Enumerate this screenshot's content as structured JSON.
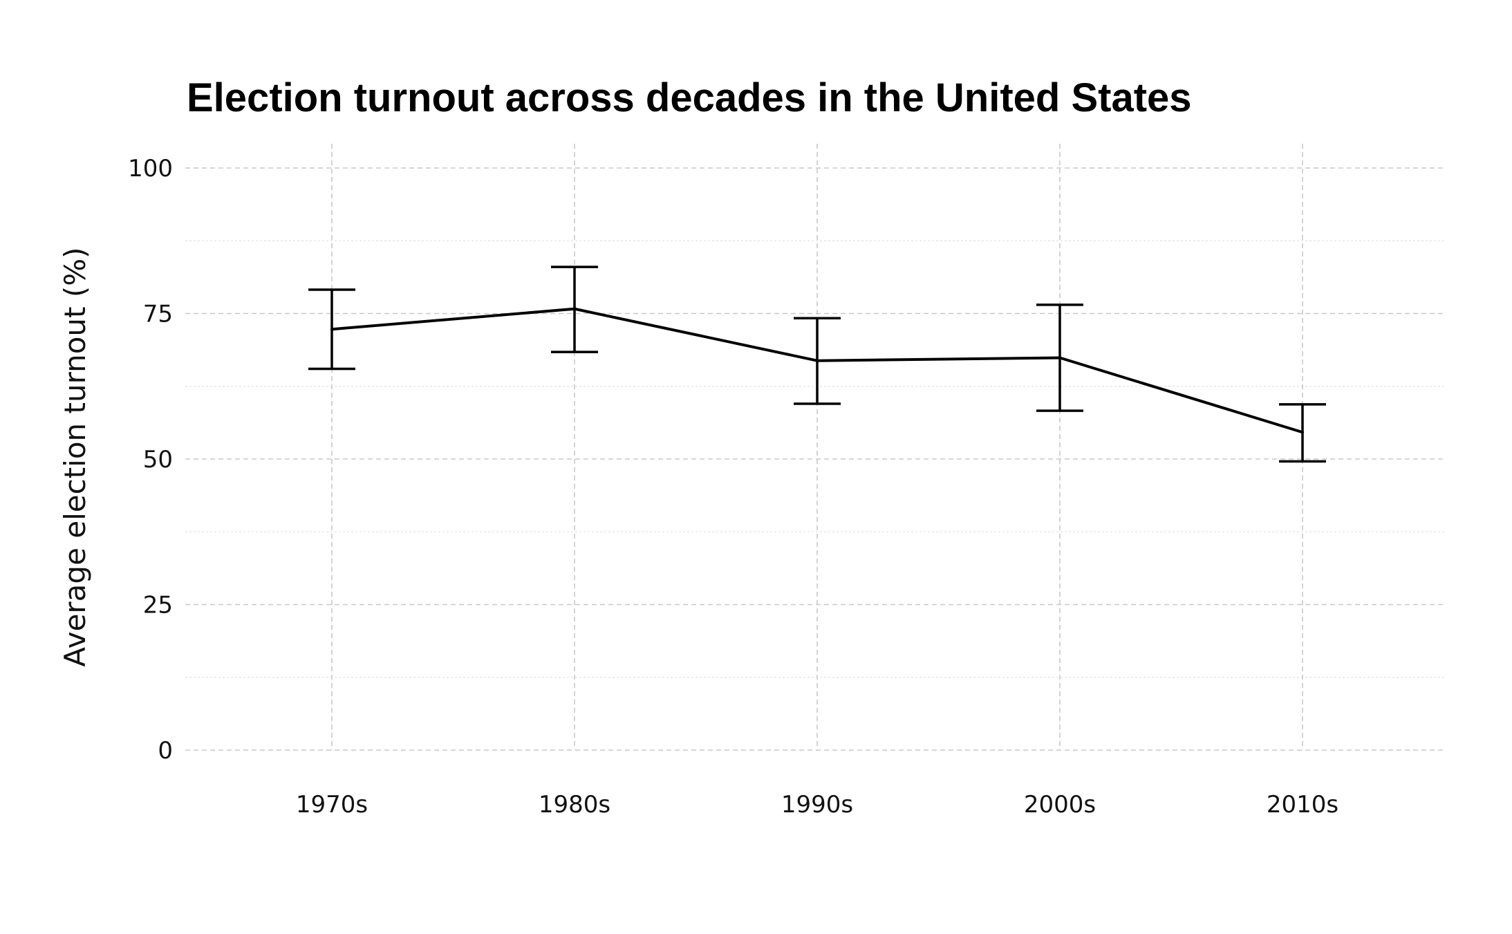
{
  "chart_data": {
    "type": "line",
    "title": "Election turnout across decades in the United States",
    "xlabel": "",
    "ylabel": "Average election turnout (%)",
    "categories": [
      "1970s",
      "1980s",
      "1990s",
      "2000s",
      "2010s"
    ],
    "values": [
      72.3,
      75.8,
      66.9,
      67.4,
      54.6
    ],
    "error_low": [
      65.5,
      68.4,
      59.5,
      58.3,
      49.6
    ],
    "error_high": [
      79.1,
      83.0,
      74.2,
      76.5,
      59.4
    ],
    "ylim": [
      0,
      100
    ],
    "yticks": [
      0,
      25,
      50,
      75,
      100
    ],
    "grid": true,
    "legend": "none",
    "colors": {
      "line": "#000000",
      "grid": "#c8c8c8",
      "minor_grid": "#e2e2e2"
    }
  }
}
